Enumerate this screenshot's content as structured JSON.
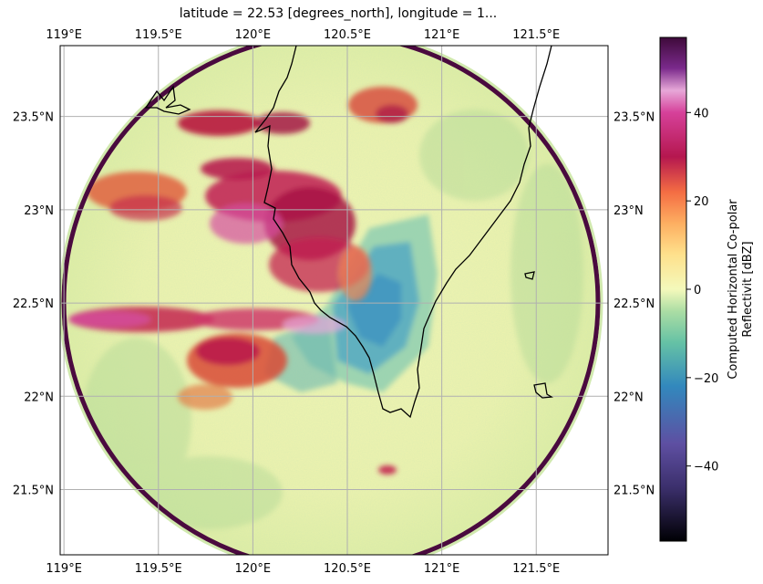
{
  "title": "latitude = 22.53 [degrees_north], longitude = 1...",
  "map": {
    "extent": {
      "lon": [
        118.98,
        121.88
      ],
      "lat": [
        21.15,
        23.88
      ]
    },
    "radar_center": {
      "lon": 120.43,
      "lat": 22.53
    },
    "x_ticks": [
      {
        "lon": 119.0,
        "label": "119°E"
      },
      {
        "lon": 119.5,
        "label": "119.5°E"
      },
      {
        "lon": 120.0,
        "label": "120°E"
      },
      {
        "lon": 120.5,
        "label": "120.5°E"
      },
      {
        "lon": 121.0,
        "label": "121°E"
      },
      {
        "lon": 121.5,
        "label": "121.5°E"
      }
    ],
    "y_ticks": [
      {
        "lat": 21.5,
        "label": "21.5°N"
      },
      {
        "lat": 22.0,
        "label": "22°N"
      },
      {
        "lat": 22.5,
        "label": "22.5°N"
      },
      {
        "lat": 23.0,
        "label": "23°N"
      },
      {
        "lat": 23.5,
        "label": "23.5°N"
      }
    ],
    "gridlines": true,
    "coastline_color": "#000000",
    "grid_color": "#b0b0b0",
    "ring_color": "#4a0a3f"
  },
  "colorbar": {
    "label_line1": "Computed Horizontal Co-polar",
    "label_line2": "Reflectivit [dBZ]",
    "range": [
      -57,
      57
    ],
    "ticks": [
      {
        "value": 40,
        "label": "40"
      },
      {
        "value": 20,
        "label": "20"
      },
      {
        "value": 0,
        "label": "0"
      },
      {
        "value": -20,
        "label": "−20"
      },
      {
        "value": -40,
        "label": "−40"
      }
    ],
    "colormap": "Spectral_r (cividis-like magma top)",
    "stops": [
      {
        "value": -57,
        "color": "#000004"
      },
      {
        "value": -45,
        "color": "#3b2f6b"
      },
      {
        "value": -35,
        "color": "#5e4fa2"
      },
      {
        "value": -22,
        "color": "#3288bd"
      },
      {
        "value": -12,
        "color": "#66c2a5"
      },
      {
        "value": -5,
        "color": "#abdda4"
      },
      {
        "value": 0,
        "color": "#f4f9bb"
      },
      {
        "value": 8,
        "color": "#fee08b"
      },
      {
        "value": 15,
        "color": "#fdae61"
      },
      {
        "value": 22,
        "color": "#f46d43"
      },
      {
        "value": 30,
        "color": "#b5174f"
      },
      {
        "value": 40,
        "color": "#d6419a"
      },
      {
        "value": 45,
        "color": "#e7a8d8"
      },
      {
        "value": 50,
        "color": "#7b2a8c"
      },
      {
        "value": 57,
        "color": "#3e0a3a"
      }
    ]
  }
}
